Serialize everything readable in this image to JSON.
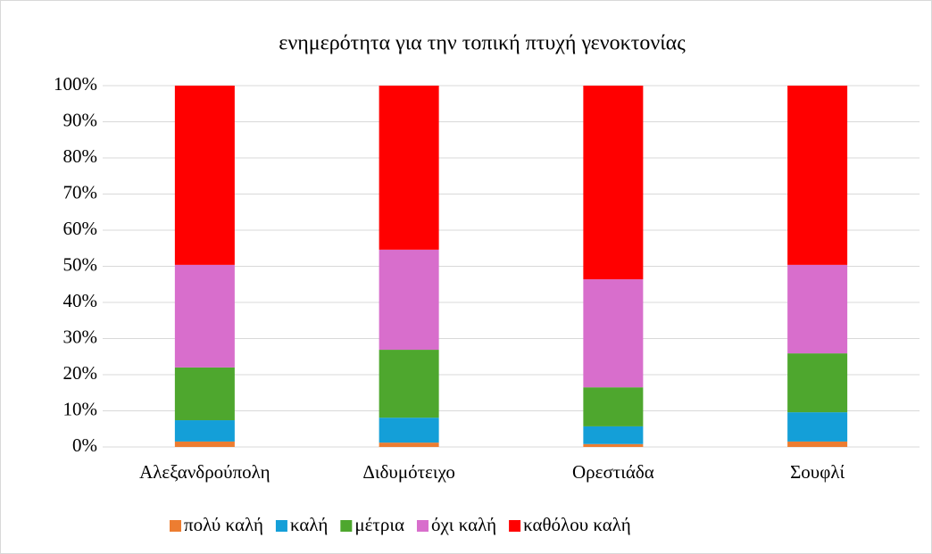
{
  "chart_data": {
    "type": "stacked_bar_100",
    "title": "ενημερότητα για την τοπική πτυχή γενοκτονίας",
    "categories": [
      "Αλεξανδρούπολη",
      "Διδυμότειχο",
      "Ορεστιάδα",
      "Σουφλί"
    ],
    "series": [
      {
        "name": "πολύ καλή",
        "color": "#ed7d31",
        "values": [
          1.5,
          1.2,
          0.8,
          1.5
        ]
      },
      {
        "name": "καλή",
        "color": "#149fd8",
        "values": [
          5.9,
          6.9,
          4.9,
          8.1
        ]
      },
      {
        "name": "μέτρια",
        "color": "#4ea72e",
        "values": [
          14.6,
          18.8,
          10.8,
          16.3
        ]
      },
      {
        "name": "όχι καλή",
        "color": "#d86ecc",
        "values": [
          28.4,
          27.7,
          29.9,
          24.5
        ]
      },
      {
        "name": "καθόλου καλή",
        "color": "#ff0000",
        "values": [
          49.6,
          45.4,
          53.6,
          49.6
        ]
      }
    ],
    "ylim": [
      0,
      100
    ],
    "yticks": [
      {
        "value": 0,
        "label": "0%"
      },
      {
        "value": 10,
        "label": "10%"
      },
      {
        "value": 20,
        "label": "20%"
      },
      {
        "value": 30,
        "label": "30%"
      },
      {
        "value": 40,
        "label": "40%"
      },
      {
        "value": 50,
        "label": "50%"
      },
      {
        "value": 60,
        "label": "60%"
      },
      {
        "value": 70,
        "label": "70%"
      },
      {
        "value": 80,
        "label": "80%"
      },
      {
        "value": 90,
        "label": "90%"
      },
      {
        "value": 100,
        "label": "100%"
      }
    ],
    "grid": true,
    "legend": "bottom"
  }
}
